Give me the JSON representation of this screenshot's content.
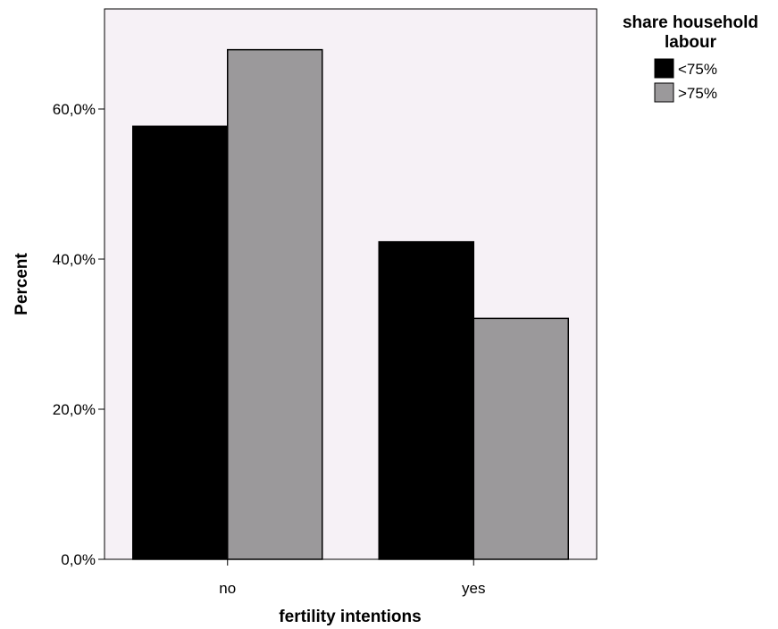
{
  "chart_data": {
    "type": "bar",
    "categories": [
      "no",
      "yes"
    ],
    "series": [
      {
        "name": "<75%",
        "values": [
          57.7,
          42.3
        ],
        "color": "#000000"
      },
      {
        "name": ">75%",
        "values": [
          67.9,
          32.1
        ],
        "color": "#9b999b"
      }
    ],
    "xlabel": "fertility intentions",
    "ylabel": "Percent",
    "ylim": [
      0,
      75
    ],
    "yticks": [
      0,
      20,
      40,
      60
    ],
    "ytick_labels": [
      "0,0%",
      "20,0%",
      "40,0%",
      "60,0%"
    ],
    "legend_title": [
      "share household",
      "labour"
    ],
    "legend_position": "top-right, outside plot",
    "plot_background": "#f6f1f6",
    "grid": false
  }
}
